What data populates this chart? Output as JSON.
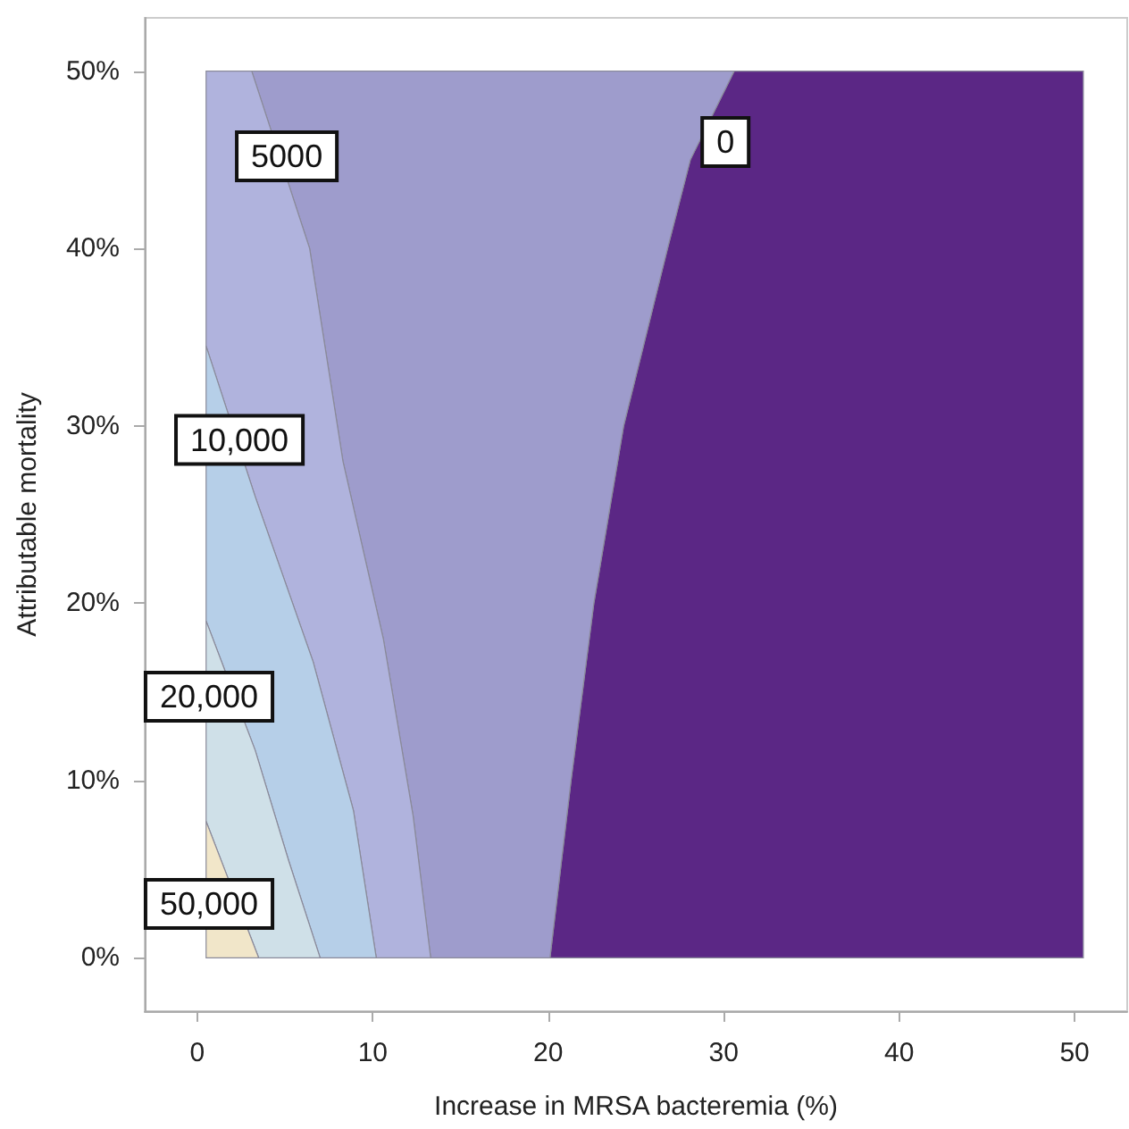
{
  "chart_data": {
    "type": "area",
    "xlabel": "Increase in MRSA bacteremia (%)",
    "ylabel": "Attributable mortality",
    "xlim": [
      -3,
      53
    ],
    "ylim": [
      -3,
      53
    ],
    "xticks": [
      0,
      10,
      20,
      30,
      40,
      50
    ],
    "yticks": [
      {
        "value": 0,
        "label": "0%"
      },
      {
        "value": 10,
        "label": "10%"
      },
      {
        "value": 20,
        "label": "20%"
      },
      {
        "value": 30,
        "label": "30%"
      },
      {
        "value": 40,
        "label": "40%"
      },
      {
        "value": 50,
        "label": "50%"
      }
    ],
    "series": [
      {
        "color": "#5b2785",
        "x": [
          30.6,
          50.5,
          50.5,
          20.1,
          21.3,
          22.6,
          24.3,
          26.8,
          28.1
        ],
        "values": [
          50,
          50,
          0,
          0,
          10,
          20,
          30,
          40,
          45
        ]
      },
      {
        "color": "#9e9ccc",
        "x": [
          3.1,
          30.6,
          28.1,
          26.8,
          24.3,
          22.6,
          21.3,
          20.1,
          13.3,
          12.3,
          10.6,
          8.3,
          6.4
        ],
        "values": [
          50,
          50,
          45,
          40,
          30,
          20,
          10,
          0,
          0,
          8,
          18,
          28,
          40
        ]
      },
      {
        "color": "#b0b3dd",
        "x": [
          0.5,
          0.5,
          3.1,
          6.4,
          8.3,
          10.6,
          12.3,
          13.3,
          10.2,
          8.9,
          6.6,
          3.3
        ],
        "values": [
          34.5,
          50,
          50,
          40,
          28,
          18,
          8,
          0,
          0,
          8.3,
          16.7,
          26
        ]
      },
      {
        "color": "#b6cfe8",
        "x": [
          0.5,
          0.5,
          3.3,
          6.6,
          8.9,
          10.2,
          7.0,
          5.2,
          3.3
        ],
        "values": [
          19,
          34.5,
          26,
          16.7,
          8.3,
          0,
          0,
          5.5,
          11.7
        ]
      },
      {
        "color": "#cfe0e8",
        "x": [
          0.5,
          0.5,
          3.3,
          5.2,
          7.0,
          3.5
        ],
        "values": [
          7.7,
          19,
          11.7,
          5.5,
          0,
          0
        ]
      },
      {
        "color": "#f1e6c9",
        "x": [
          0.5,
          0.5,
          3.5
        ],
        "values": [
          0,
          7.7,
          0
        ]
      }
    ],
    "annotations": [
      {
        "text": "5000",
        "x": 5.1,
        "y": 45.2
      },
      {
        "text": "0",
        "x": 30.1,
        "y": 46
      },
      {
        "text": "10,000",
        "x": 2.4,
        "y": 29.2
      },
      "20,000",
      "50,000"
    ]
  }
}
